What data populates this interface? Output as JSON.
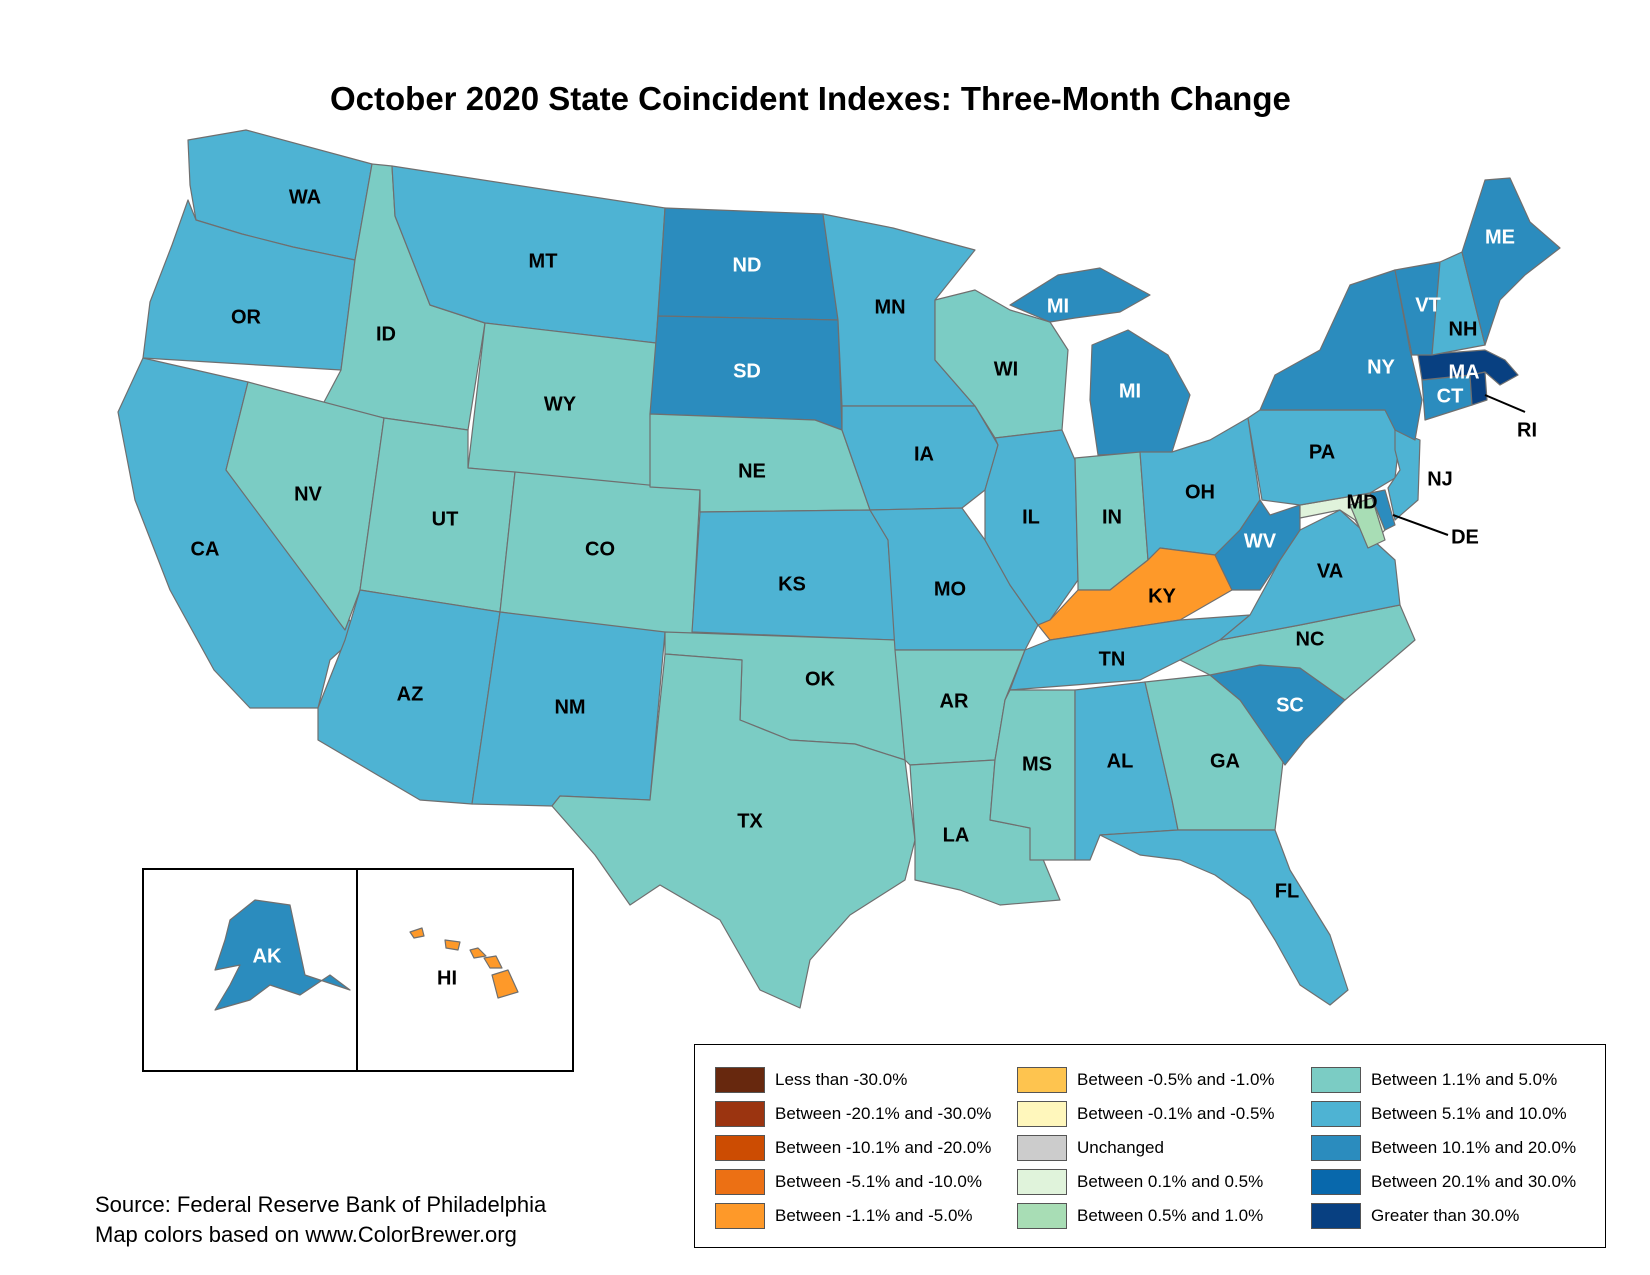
{
  "title": "October 2020 State Coincident Indexes: Three-Month Change",
  "colors": {
    "c_lt_neg30": "#67280e",
    "c_neg30_20": "#9b3410",
    "c_neg20_10": "#cc4c02",
    "c_neg10_5": "#ec7014",
    "c_neg5_1": "#fe9929",
    "c_neg1_05": "#fec44f",
    "c_neg05_01": "#fff7bc",
    "c_unch": "#cccccc",
    "c_01_05": "#e0f3db",
    "c_05_1": "#a8ddb5",
    "c_1_5": "#7bccc4",
    "c_5_10": "#4eb3d3",
    "c_10_20": "#2b8cbe",
    "c_20_30": "#0868ac",
    "c_gt30": "#084081"
  },
  "states": {
    "WA": {
      "label": "WA",
      "bin": "c_5_10"
    },
    "OR": {
      "label": "OR",
      "bin": "c_5_10"
    },
    "CA": {
      "label": "CA",
      "bin": "c_5_10"
    },
    "ID": {
      "label": "ID",
      "bin": "c_1_5"
    },
    "NV": {
      "label": "NV",
      "bin": "c_1_5"
    },
    "MT": {
      "label": "MT",
      "bin": "c_5_10"
    },
    "WY": {
      "label": "WY",
      "bin": "c_1_5"
    },
    "UT": {
      "label": "UT",
      "bin": "c_1_5"
    },
    "AZ": {
      "label": "AZ",
      "bin": "c_5_10"
    },
    "CO": {
      "label": "CO",
      "bin": "c_1_5"
    },
    "NM": {
      "label": "NM",
      "bin": "c_5_10"
    },
    "ND": {
      "label": "ND",
      "bin": "c_10_20"
    },
    "SD": {
      "label": "SD",
      "bin": "c_10_20"
    },
    "NE": {
      "label": "NE",
      "bin": "c_1_5"
    },
    "KS": {
      "label": "KS",
      "bin": "c_5_10"
    },
    "OK": {
      "label": "OK",
      "bin": "c_1_5"
    },
    "TX": {
      "label": "TX",
      "bin": "c_1_5"
    },
    "MN": {
      "label": "MN",
      "bin": "c_5_10"
    },
    "IA": {
      "label": "IA",
      "bin": "c_5_10"
    },
    "MO": {
      "label": "MO",
      "bin": "c_5_10"
    },
    "AR": {
      "label": "AR",
      "bin": "c_1_5"
    },
    "LA": {
      "label": "LA",
      "bin": "c_1_5"
    },
    "WI": {
      "label": "WI",
      "bin": "c_1_5"
    },
    "IL": {
      "label": "IL",
      "bin": "c_5_10"
    },
    "MI": {
      "label": "MI",
      "bin": "c_10_20"
    },
    "IN": {
      "label": "IN",
      "bin": "c_1_5"
    },
    "OH": {
      "label": "OH",
      "bin": "c_5_10"
    },
    "KY": {
      "label": "KY",
      "bin": "c_neg5_1"
    },
    "TN": {
      "label": "TN",
      "bin": "c_5_10"
    },
    "MS": {
      "label": "MS",
      "bin": "c_1_5"
    },
    "AL": {
      "label": "AL",
      "bin": "c_5_10"
    },
    "GA": {
      "label": "GA",
      "bin": "c_1_5"
    },
    "FL": {
      "label": "FL",
      "bin": "c_5_10"
    },
    "SC": {
      "label": "SC",
      "bin": "c_10_20"
    },
    "NC": {
      "label": "NC",
      "bin": "c_1_5"
    },
    "VA": {
      "label": "VA",
      "bin": "c_5_10"
    },
    "WV": {
      "label": "WV",
      "bin": "c_10_20"
    },
    "PA": {
      "label": "PA",
      "bin": "c_5_10"
    },
    "NY": {
      "label": "NY",
      "bin": "c_10_20"
    },
    "VT": {
      "label": "VT",
      "bin": "c_10_20"
    },
    "NH": {
      "label": "NH",
      "bin": "c_5_10"
    },
    "ME": {
      "label": "ME",
      "bin": "c_10_20"
    },
    "MA": {
      "label": "MA",
      "bin": "c_gt30"
    },
    "CT": {
      "label": "CT",
      "bin": "c_10_20"
    },
    "RI": {
      "label": "RI",
      "bin": "c_gt30"
    },
    "NJ": {
      "label": "NJ",
      "bin": "c_5_10"
    },
    "DE": {
      "label": "DE",
      "bin": "c_10_20"
    },
    "MD": {
      "label": "MD",
      "bin": "c_01_05"
    },
    "DC": {
      "label": "",
      "bin": "c_05_1"
    },
    "AK": {
      "label": "AK",
      "bin": "c_10_20"
    },
    "HI": {
      "label": "HI",
      "bin": "c_neg5_1"
    }
  },
  "legend": [
    {
      "label": "Less than -30.0%",
      "bin": "c_lt_neg30"
    },
    {
      "label": "Between -20.1% and -30.0%",
      "bin": "c_neg30_20"
    },
    {
      "label": "Between -10.1% and -20.0%",
      "bin": "c_neg20_10"
    },
    {
      "label": "Between -5.1% and -10.0%",
      "bin": "c_neg10_5"
    },
    {
      "label": "Between -1.1% and -5.0%",
      "bin": "c_neg5_1"
    },
    {
      "label": "Between -0.5% and -1.0%",
      "bin": "c_neg1_05"
    },
    {
      "label": "Between -0.1% and -0.5%",
      "bin": "c_neg05_01"
    },
    {
      "label": "Unchanged",
      "bin": "c_unch"
    },
    {
      "label": "Between 0.1% and 0.5%",
      "bin": "c_01_05"
    },
    {
      "label": "Between 0.5% and 1.0%",
      "bin": "c_05_1"
    },
    {
      "label": "Between 1.1% and 5.0%",
      "bin": "c_1_5"
    },
    {
      "label": "Between 5.1% and 10.0%",
      "bin": "c_5_10"
    },
    {
      "label": "Between 10.1% and 20.0%",
      "bin": "c_10_20"
    },
    {
      "label": "Between 20.1% and 30.0%",
      "bin": "c_20_30"
    },
    {
      "label": "Greater than 30.0%",
      "bin": "c_gt30"
    }
  ],
  "source_line1": "Source: Federal Reserve Bank of Philadelphia",
  "source_line2": "Map colors based on www.ColorBrewer.org"
}
